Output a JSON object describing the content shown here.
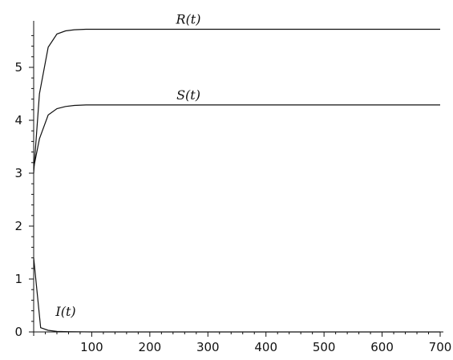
{
  "chart_data": {
    "type": "line",
    "title": "",
    "xlabel": "",
    "ylabel": "",
    "xlim": [
      0,
      700
    ],
    "ylim": [
      0,
      5.8
    ],
    "grid": false,
    "x_ticks": [
      100,
      200,
      300,
      400,
      500,
      600,
      700
    ],
    "y_ticks": [
      0,
      1,
      2,
      3,
      4,
      5
    ],
    "series": [
      {
        "name": "R(t)",
        "x": [
          0,
          10,
          25,
          40,
          55,
          70,
          90,
          120,
          200,
          700
        ],
        "y": [
          3.0,
          4.5,
          5.38,
          5.63,
          5.69,
          5.71,
          5.72,
          5.72,
          5.72,
          5.72
        ]
      },
      {
        "name": "S(t)",
        "x": [
          0,
          10,
          25,
          40,
          55,
          70,
          90,
          120,
          200,
          700
        ],
        "y": [
          3.1,
          3.65,
          4.1,
          4.22,
          4.26,
          4.28,
          4.29,
          4.29,
          4.29,
          4.29
        ]
      },
      {
        "name": "I(t)",
        "x": [
          0,
          12,
          25,
          40,
          60,
          100,
          700
        ],
        "y": [
          1.4,
          0.08,
          0.03,
          0.01,
          0.005,
          0.0,
          0.0
        ]
      }
    ]
  }
}
